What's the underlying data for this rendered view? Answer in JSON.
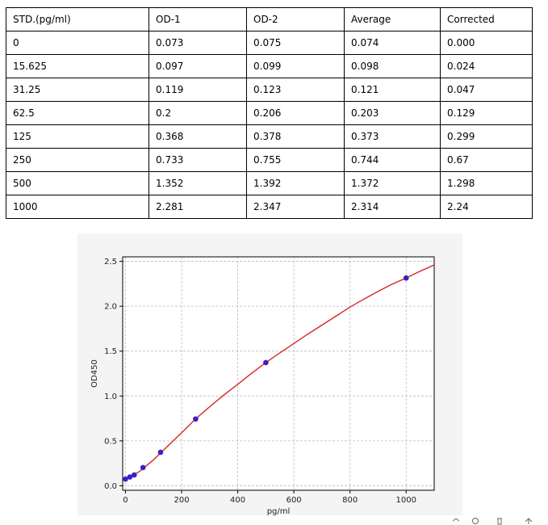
{
  "table": {
    "headers": [
      "STD.(pg/ml)",
      "OD-1",
      "OD-2",
      "Average",
      "Corrected"
    ],
    "rows": [
      [
        "0",
        "0.073",
        "0.075",
        "0.074",
        "0.000"
      ],
      [
        "15.625",
        "0.097",
        "0.099",
        "0.098",
        "0.024"
      ],
      [
        "31.25",
        "0.119",
        "0.123",
        "0.121",
        "0.047"
      ],
      [
        "62.5",
        "0.2",
        "0.206",
        "0.203",
        "0.129"
      ],
      [
        "125",
        "0.368",
        "0.378",
        "0.373",
        "0.299"
      ],
      [
        "250",
        "0.733",
        "0.755",
        "0.744",
        "0.67"
      ],
      [
        "500",
        "1.352",
        "1.392",
        "1.372",
        "1.298"
      ],
      [
        "1000",
        "2.281",
        "2.347",
        "2.314",
        "2.24"
      ]
    ]
  },
  "chart_data": {
    "type": "scatter",
    "title": "",
    "xlabel": "pg/ml",
    "ylabel": "OD450",
    "xlim": [
      -10,
      1100
    ],
    "ylim": [
      -0.05,
      2.55
    ],
    "xticks": [
      0,
      200,
      400,
      600,
      800,
      1000
    ],
    "xtick_labels": [
      "0",
      "200",
      "400",
      "600",
      "800",
      "1000"
    ],
    "yticks": [
      0.0,
      0.5,
      1.0,
      1.5,
      2.0,
      2.5
    ],
    "ytick_labels": [
      "0.0",
      "0.5",
      "1.0",
      "1.5",
      "2.0",
      "2.5"
    ],
    "grid": true,
    "series": [
      {
        "type": "scatter",
        "color": "#3a1fc4",
        "x": [
          0,
          15.625,
          31.25,
          62.5,
          125,
          250,
          500,
          1000
        ],
        "y": [
          0.074,
          0.098,
          0.121,
          0.203,
          0.373,
          0.744,
          1.372,
          2.314
        ]
      },
      {
        "type": "line",
        "color": "#d62728",
        "x": [
          0,
          50,
          100,
          150,
          200,
          250,
          300,
          350,
          400,
          450,
          500,
          550,
          600,
          650,
          700,
          750,
          800,
          850,
          900,
          950,
          1000,
          1050,
          1100
        ],
        "y": [
          0.07,
          0.16,
          0.29,
          0.44,
          0.59,
          0.745,
          0.88,
          1.01,
          1.13,
          1.255,
          1.372,
          1.48,
          1.585,
          1.69,
          1.79,
          1.89,
          1.99,
          2.08,
          2.165,
          2.245,
          2.314,
          2.39,
          2.46
        ]
      }
    ]
  },
  "icons": [
    "window-control-icon-1",
    "window-control-icon-2",
    "window-control-icon-3",
    "window-control-icon-4"
  ]
}
